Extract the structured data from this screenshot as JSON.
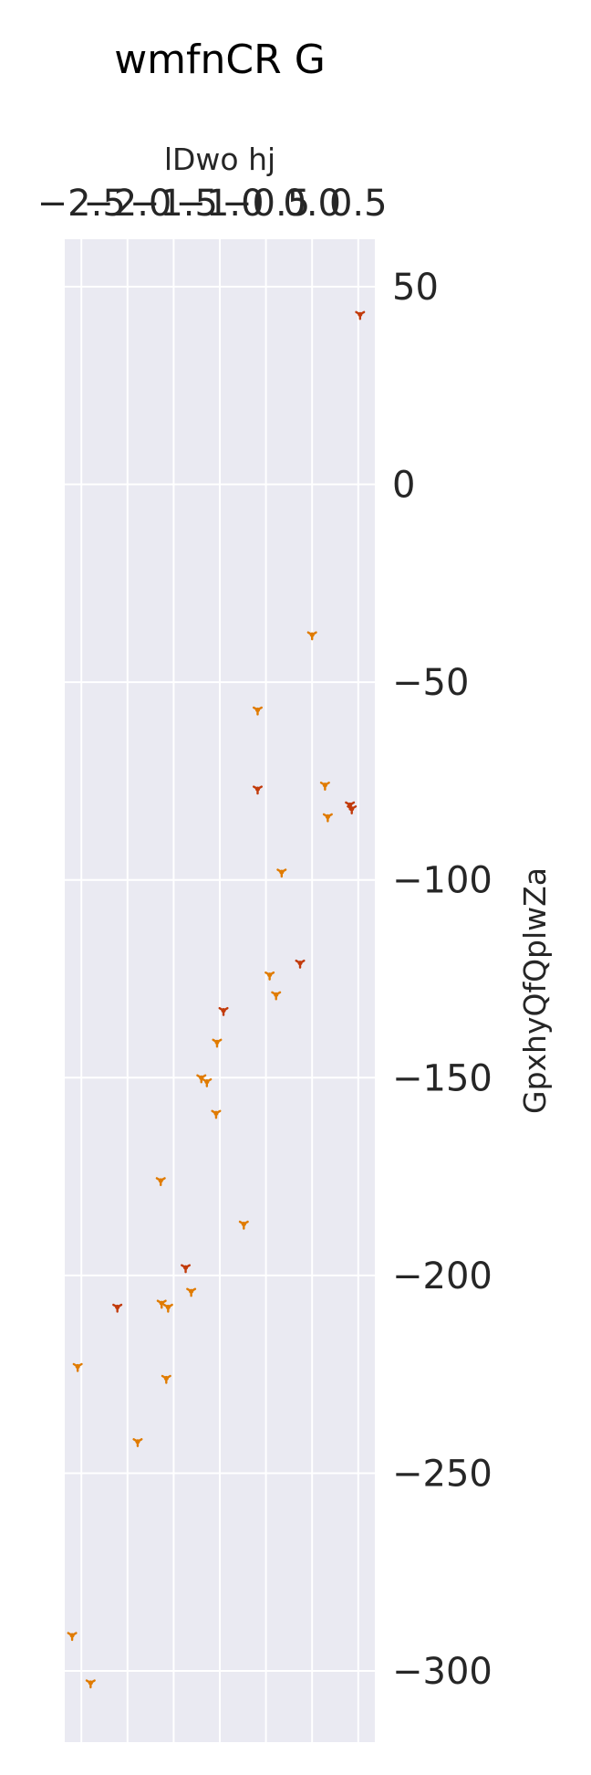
{
  "chart_data": {
    "type": "scatter",
    "title": "wmfnCR G",
    "xlabel": "lDwo hj",
    "ylabel": "GpxhyQfQplwZa",
    "x_axis_position": "top",
    "y_axis_position": "right",
    "grid": true,
    "xlim": [
      -2.68,
      0.68
    ],
    "ylim": [
      -318,
      62
    ],
    "x_ticks": [
      -2.5,
      -2.0,
      -1.5,
      -1.0,
      -0.5,
      0.0,
      0.5
    ],
    "x_tick_labels": [
      "−2.5",
      "−2.0",
      "−1.5",
      "−1.0",
      "−0.5",
      "0.0",
      "0.5"
    ],
    "y_ticks": [
      50,
      0,
      -50,
      -100,
      -150,
      -200,
      -250,
      -300
    ],
    "y_tick_labels": [
      "50",
      "0",
      "−50",
      "−100",
      "−150",
      "−200",
      "−250",
      "−300"
    ],
    "colors": {
      "orange": "#e07b00",
      "red": "#c23b0b",
      "background": "#eaeaf2",
      "grid": "#ffffff"
    },
    "points": [
      {
        "x": 0.52,
        "y": 43,
        "c": "red"
      },
      {
        "x": 0.0,
        "y": -38,
        "c": "orange"
      },
      {
        "x": -0.59,
        "y": -57,
        "c": "orange"
      },
      {
        "x": -0.59,
        "y": -77,
        "c": "red"
      },
      {
        "x": 0.14,
        "y": -76,
        "c": "orange"
      },
      {
        "x": 0.17,
        "y": -84,
        "c": "orange"
      },
      {
        "x": 0.41,
        "y": -81,
        "c": "red"
      },
      {
        "x": 0.43,
        "y": -82,
        "c": "red"
      },
      {
        "x": -0.33,
        "y": -98,
        "c": "orange"
      },
      {
        "x": -0.13,
        "y": -121,
        "c": "red"
      },
      {
        "x": -0.46,
        "y": -124,
        "c": "orange"
      },
      {
        "x": -0.39,
        "y": -129,
        "c": "orange"
      },
      {
        "x": -0.96,
        "y": -133,
        "c": "red"
      },
      {
        "x": -1.03,
        "y": -141,
        "c": "orange"
      },
      {
        "x": -1.2,
        "y": -150,
        "c": "orange"
      },
      {
        "x": -1.14,
        "y": -151,
        "c": "orange"
      },
      {
        "x": -1.04,
        "y": -159,
        "c": "orange"
      },
      {
        "x": -1.64,
        "y": -176,
        "c": "orange"
      },
      {
        "x": -0.74,
        "y": -187,
        "c": "orange"
      },
      {
        "x": -1.37,
        "y": -198,
        "c": "red"
      },
      {
        "x": -1.31,
        "y": -204,
        "c": "orange"
      },
      {
        "x": -1.63,
        "y": -207,
        "c": "orange"
      },
      {
        "x": -1.56,
        "y": -208,
        "c": "orange"
      },
      {
        "x": -2.11,
        "y": -208,
        "c": "red"
      },
      {
        "x": -2.54,
        "y": -223,
        "c": "orange"
      },
      {
        "x": -1.58,
        "y": -226,
        "c": "orange"
      },
      {
        "x": -1.89,
        "y": -242,
        "c": "orange"
      },
      {
        "x": -2.6,
        "y": -291,
        "c": "orange"
      },
      {
        "x": -2.4,
        "y": -303,
        "c": "orange"
      }
    ]
  }
}
